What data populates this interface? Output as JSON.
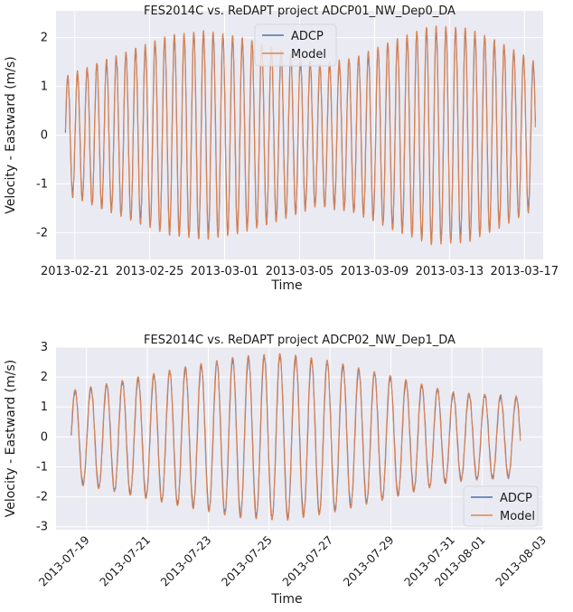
{
  "colors": {
    "panel_bg": "#eaeaf2",
    "grid": "#ffffff",
    "adcp": "#4c72b0",
    "model": "#dd8452"
  },
  "chart_data": [
    {
      "type": "line",
      "title": "FES2014C vs. ReDAPT project ADCP01_NW_Dep0_DA",
      "xlabel": "Time",
      "ylabel": "Velocity - Eastward (m/s)",
      "x_range": [
        "2013-02-20",
        "2013-03-18"
      ],
      "ylim": [
        -2.55,
        2.55
      ],
      "x_ticks": [
        "2013-02-21",
        "2013-02-25",
        "2013-03-01",
        "2013-03-05",
        "2013-03-09",
        "2013-03-13",
        "2013-03-17"
      ],
      "y_ticks": [
        -2,
        -1,
        0,
        1,
        2
      ],
      "grid": true,
      "legend": "top-center",
      "data_range": [
        "2013-02-20T12:00",
        "2013-03-17T14:00"
      ],
      "tidal_period_hours": 12.42,
      "envelope": [
        {
          "date": "2013-02-20T12:00",
          "amp": 1.2
        },
        {
          "date": "2013-02-22T00:00",
          "amp": 1.45
        },
        {
          "date": "2013-02-24T00:00",
          "amp": 1.75
        },
        {
          "date": "2013-02-26T00:00",
          "amp": 2.05
        },
        {
          "date": "2013-02-28T00:00",
          "amp": 2.15
        },
        {
          "date": "2013-03-02T00:00",
          "amp": 2.0
        },
        {
          "date": "2013-03-04T00:00",
          "amp": 1.75
        },
        {
          "date": "2013-03-06T00:00",
          "amp": 1.45
        },
        {
          "date": "2013-03-08T00:00",
          "amp": 1.6
        },
        {
          "date": "2013-03-10T00:00",
          "amp": 1.95
        },
        {
          "date": "2013-03-12T00:00",
          "amp": 2.25
        },
        {
          "date": "2013-03-14T00:00",
          "amp": 2.2
        },
        {
          "date": "2013-03-16T00:00",
          "amp": 1.85
        },
        {
          "date": "2013-03-17T14:00",
          "amp": 1.5
        }
      ],
      "series": [
        {
          "name": "ADCP",
          "color": "#4c72b0"
        },
        {
          "name": "Model",
          "color": "#dd8452"
        }
      ]
    },
    {
      "type": "line",
      "title": "FES2014C vs. ReDAPT project ADCP02_NW_Dep1_DA",
      "xlabel": "Time",
      "ylabel": "Velocity - Eastward (m/s)",
      "x_range": [
        "2013-07-18",
        "2013-08-03"
      ],
      "ylim": [
        -3.1,
        3.0
      ],
      "x_ticks": [
        "2013-07-19",
        "2013-07-21",
        "2013-07-23",
        "2013-07-25",
        "2013-07-27",
        "2013-07-29",
        "2013-07-31",
        "2013-08-01",
        "2013-08-03"
      ],
      "y_ticks": [
        -3,
        -2,
        -1,
        0,
        1,
        2,
        3
      ],
      "grid": true,
      "legend": "bottom-right",
      "data_range": [
        "2013-07-18T12:00",
        "2013-08-02T06:00"
      ],
      "tidal_period_hours": 12.42,
      "envelope": [
        {
          "date": "2013-07-18T12:00",
          "amp": 1.55
        },
        {
          "date": "2013-07-20T00:00",
          "amp": 1.85
        },
        {
          "date": "2013-07-22T00:00",
          "amp": 2.3
        },
        {
          "date": "2013-07-24T00:00",
          "amp": 2.7
        },
        {
          "date": "2013-07-25T12:00",
          "amp": 2.8
        },
        {
          "date": "2013-07-27T00:00",
          "amp": 2.55
        },
        {
          "date": "2013-07-29T00:00",
          "amp": 2.05
        },
        {
          "date": "2013-07-31T00:00",
          "amp": 1.5
        },
        {
          "date": "2013-08-02T06:00",
          "amp": 1.35
        }
      ],
      "series": [
        {
          "name": "ADCP",
          "color": "#4c72b0"
        },
        {
          "name": "Model",
          "color": "#dd8452"
        }
      ]
    }
  ]
}
